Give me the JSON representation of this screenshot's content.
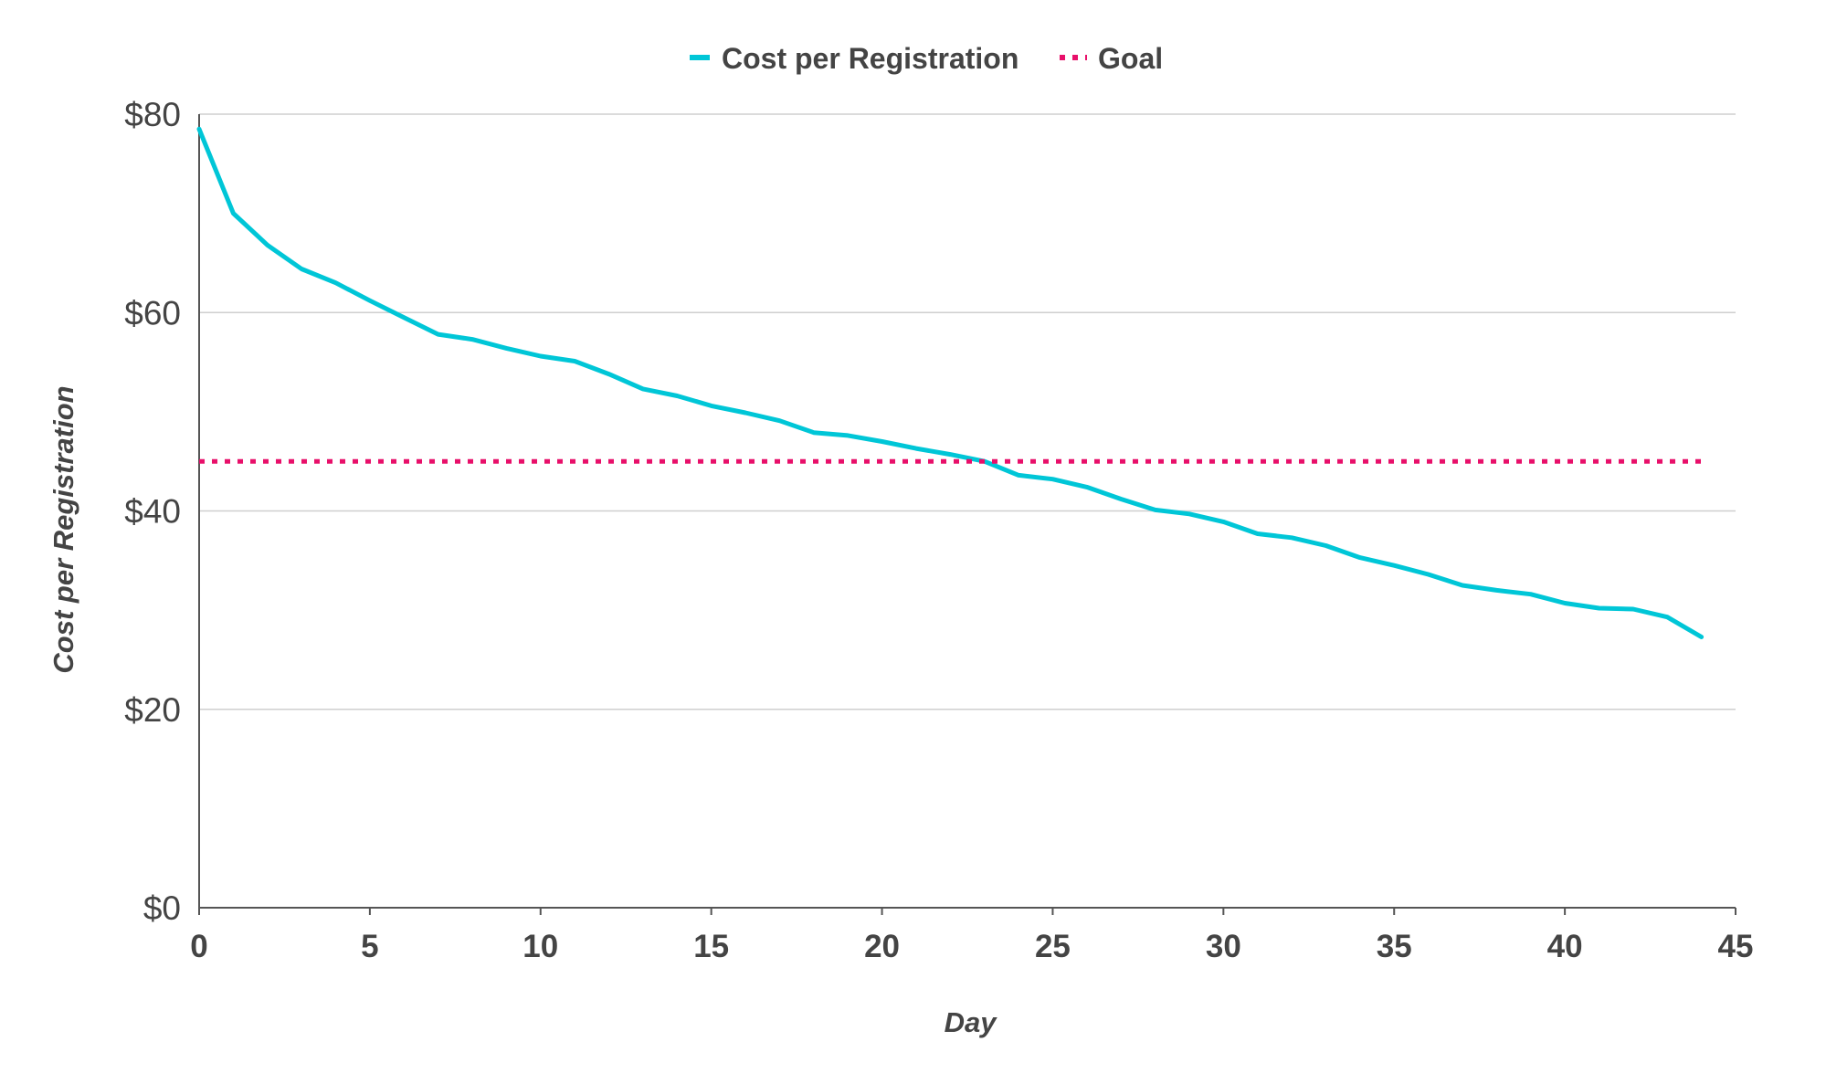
{
  "chart_data": {
    "type": "line",
    "xlabel": "Day",
    "ylabel": "Cost per Registration",
    "xlim": [
      0,
      45
    ],
    "ylim": [
      0,
      80
    ],
    "x_ticks": [
      "0",
      "5",
      "10",
      "15",
      "20",
      "25",
      "30",
      "35",
      "40",
      "45"
    ],
    "y_ticks": [
      "$0",
      "$20",
      "$40",
      "$60",
      "$80"
    ],
    "grid": "horizontal",
    "legend_position": "top-center",
    "x": [
      0,
      1,
      2,
      3,
      4,
      5,
      6,
      7,
      8,
      9,
      10,
      11,
      12,
      13,
      14,
      15,
      16,
      17,
      18,
      19,
      20,
      21,
      22,
      23,
      24,
      25,
      26,
      27,
      28,
      29,
      30,
      31,
      32,
      33,
      34,
      35,
      36,
      37,
      38,
      39,
      40,
      41,
      42,
      43,
      44
    ],
    "series": [
      {
        "name": "Cost per Registration",
        "color": "#00c6d7",
        "style": "solid",
        "values": [
          78.5,
          70.0,
          66.8,
          64.4,
          63.0,
          61.2,
          59.5,
          57.8,
          57.3,
          56.4,
          55.6,
          55.1,
          53.8,
          52.3,
          51.6,
          50.6,
          49.9,
          49.1,
          47.9,
          47.6,
          47.0,
          46.3,
          45.7,
          45.0,
          43.6,
          43.2,
          42.4,
          41.2,
          40.1,
          39.7,
          38.9,
          37.7,
          37.3,
          36.5,
          35.3,
          34.5,
          33.6,
          32.5,
          32.0,
          31.6,
          30.7,
          30.2,
          30.1,
          29.3,
          27.3
        ]
      },
      {
        "name": "Goal",
        "color": "#e8106a",
        "style": "dotted",
        "values": [
          45,
          45,
          45,
          45,
          45,
          45,
          45,
          45,
          45,
          45,
          45,
          45,
          45,
          45,
          45,
          45,
          45,
          45,
          45,
          45,
          45,
          45,
          45,
          45,
          45,
          45,
          45,
          45,
          45,
          45,
          45,
          45,
          45,
          45,
          45,
          45,
          45,
          45,
          45,
          45,
          45,
          45,
          45,
          45,
          45
        ]
      }
    ]
  }
}
